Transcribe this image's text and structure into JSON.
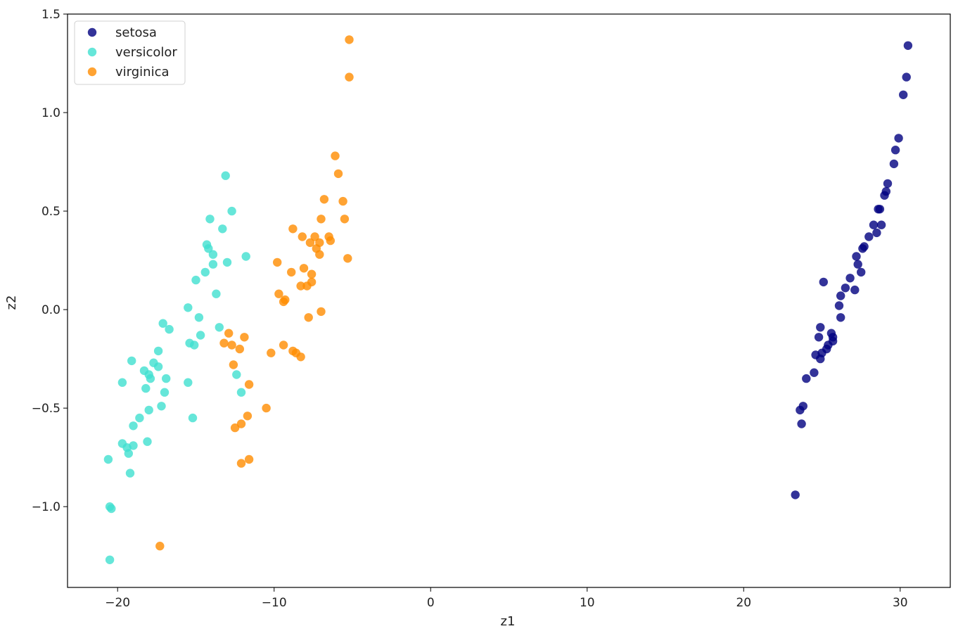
{
  "chart_data": {
    "type": "scatter",
    "title": "",
    "xlabel": "z1",
    "ylabel": "z2",
    "xlim": [
      -23.2,
      33.2
    ],
    "ylim": [
      -1.41,
      1.5
    ],
    "xticks": [
      -20,
      -10,
      0,
      10,
      20,
      30
    ],
    "xtick_labels": [
      "−20",
      "−10",
      "0",
      "10",
      "20",
      "30"
    ],
    "yticks": [
      -1.0,
      -0.5,
      0.0,
      0.5,
      1.0,
      1.5
    ],
    "ytick_labels": [
      "−1.0",
      "−0.5",
      "0.0",
      "0.5",
      "1.0",
      "1.5"
    ],
    "grid": false,
    "legend_position": "upper-left",
    "series": [
      {
        "name": "setosa",
        "color": "#000080",
        "points": [
          [
            30.5,
            1.34
          ],
          [
            30.4,
            1.18
          ],
          [
            30.2,
            1.09
          ],
          [
            29.9,
            0.87
          ],
          [
            29.7,
            0.81
          ],
          [
            29.6,
            0.74
          ],
          [
            29.2,
            0.64
          ],
          [
            29.1,
            0.6
          ],
          [
            29.0,
            0.58
          ],
          [
            28.7,
            0.51
          ],
          [
            28.6,
            0.51
          ],
          [
            28.8,
            0.43
          ],
          [
            28.3,
            0.43
          ],
          [
            28.5,
            0.39
          ],
          [
            28.0,
            0.37
          ],
          [
            27.7,
            0.32
          ],
          [
            27.6,
            0.31
          ],
          [
            27.2,
            0.27
          ],
          [
            27.3,
            0.23
          ],
          [
            27.5,
            0.19
          ],
          [
            26.8,
            0.16
          ],
          [
            27.1,
            0.1
          ],
          [
            26.5,
            0.11
          ],
          [
            26.2,
            0.07
          ],
          [
            26.1,
            0.02
          ],
          [
            26.2,
            -0.04
          ],
          [
            25.1,
            0.14
          ],
          [
            25.6,
            -0.12
          ],
          [
            25.7,
            -0.14
          ],
          [
            25.7,
            -0.16
          ],
          [
            25.4,
            -0.18
          ],
          [
            25.3,
            -0.2
          ],
          [
            25.0,
            -0.22
          ],
          [
            24.6,
            -0.23
          ],
          [
            24.9,
            -0.25
          ],
          [
            24.5,
            -0.32
          ],
          [
            24.0,
            -0.35
          ],
          [
            24.9,
            -0.09
          ],
          [
            24.8,
            -0.14
          ],
          [
            23.8,
            -0.49
          ],
          [
            23.6,
            -0.51
          ],
          [
            23.7,
            -0.58
          ],
          [
            23.3,
            -0.94
          ]
        ]
      },
      {
        "name": "versicolor",
        "color": "#40E0D0",
        "points": [
          [
            -13.1,
            0.68
          ],
          [
            -12.7,
            0.5
          ],
          [
            -14.1,
            0.46
          ],
          [
            -13.3,
            0.41
          ],
          [
            -14.3,
            0.33
          ],
          [
            -14.2,
            0.31
          ],
          [
            -13.9,
            0.28
          ],
          [
            -13.0,
            0.24
          ],
          [
            -11.8,
            0.27
          ],
          [
            -13.9,
            0.23
          ],
          [
            -14.4,
            0.19
          ],
          [
            -15.0,
            0.15
          ],
          [
            -13.7,
            0.08
          ],
          [
            -15.5,
            0.01
          ],
          [
            -14.8,
            -0.04
          ],
          [
            -13.5,
            -0.09
          ],
          [
            -14.7,
            -0.13
          ],
          [
            -15.4,
            -0.17
          ],
          [
            -15.1,
            -0.18
          ],
          [
            -17.1,
            -0.07
          ],
          [
            -16.7,
            -0.1
          ],
          [
            -17.4,
            -0.21
          ],
          [
            -19.1,
            -0.26
          ],
          [
            -17.7,
            -0.27
          ],
          [
            -17.4,
            -0.29
          ],
          [
            -18.3,
            -0.31
          ],
          [
            -18.0,
            -0.33
          ],
          [
            -17.9,
            -0.35
          ],
          [
            -16.9,
            -0.35
          ],
          [
            -19.7,
            -0.37
          ],
          [
            -15.5,
            -0.37
          ],
          [
            -18.2,
            -0.4
          ],
          [
            -17.0,
            -0.42
          ],
          [
            -12.4,
            -0.33
          ],
          [
            -12.1,
            -0.42
          ],
          [
            -17.2,
            -0.49
          ],
          [
            -18.0,
            -0.51
          ],
          [
            -18.6,
            -0.55
          ],
          [
            -15.2,
            -0.55
          ],
          [
            -19.0,
            -0.59
          ],
          [
            -19.7,
            -0.68
          ],
          [
            -18.1,
            -0.67
          ],
          [
            -19.0,
            -0.69
          ],
          [
            -19.4,
            -0.7
          ],
          [
            -19.3,
            -0.73
          ],
          [
            -20.6,
            -0.76
          ],
          [
            -19.2,
            -0.83
          ],
          [
            -20.5,
            -1.0
          ],
          [
            -20.4,
            -1.01
          ],
          [
            -20.5,
            -1.27
          ]
        ]
      },
      {
        "name": "virginica",
        "color": "#FF8C00",
        "points": [
          [
            -5.2,
            1.37
          ],
          [
            -5.2,
            1.18
          ],
          [
            -6.1,
            0.78
          ],
          [
            -5.9,
            0.69
          ],
          [
            -6.8,
            0.56
          ],
          [
            -5.6,
            0.55
          ],
          [
            -7.0,
            0.46
          ],
          [
            -5.5,
            0.46
          ],
          [
            -8.8,
            0.41
          ],
          [
            -8.2,
            0.37
          ],
          [
            -7.4,
            0.37
          ],
          [
            -6.5,
            0.37
          ],
          [
            -7.7,
            0.34
          ],
          [
            -7.1,
            0.34
          ],
          [
            -6.4,
            0.35
          ],
          [
            -7.3,
            0.31
          ],
          [
            -7.1,
            0.28
          ],
          [
            -5.3,
            0.26
          ],
          [
            -9.8,
            0.24
          ],
          [
            -8.1,
            0.21
          ],
          [
            -8.9,
            0.19
          ],
          [
            -7.6,
            0.18
          ],
          [
            -7.6,
            0.14
          ],
          [
            -8.3,
            0.12
          ],
          [
            -7.9,
            0.12
          ],
          [
            -9.7,
            0.08
          ],
          [
            -9.4,
            0.04
          ],
          [
            -9.3,
            0.05
          ],
          [
            -7.0,
            -0.01
          ],
          [
            -7.8,
            -0.04
          ],
          [
            -12.9,
            -0.12
          ],
          [
            -11.9,
            -0.14
          ],
          [
            -13.2,
            -0.17
          ],
          [
            -12.7,
            -0.18
          ],
          [
            -9.4,
            -0.18
          ],
          [
            -12.2,
            -0.2
          ],
          [
            -8.8,
            -0.21
          ],
          [
            -8.6,
            -0.22
          ],
          [
            -10.2,
            -0.22
          ],
          [
            -8.3,
            -0.24
          ],
          [
            -12.6,
            -0.28
          ],
          [
            -11.6,
            -0.38
          ],
          [
            -10.5,
            -0.5
          ],
          [
            -11.7,
            -0.54
          ],
          [
            -12.1,
            -0.58
          ],
          [
            -12.5,
            -0.6
          ],
          [
            -11.6,
            -0.76
          ],
          [
            -12.1,
            -0.78
          ],
          [
            -17.3,
            -1.2
          ]
        ]
      }
    ]
  }
}
